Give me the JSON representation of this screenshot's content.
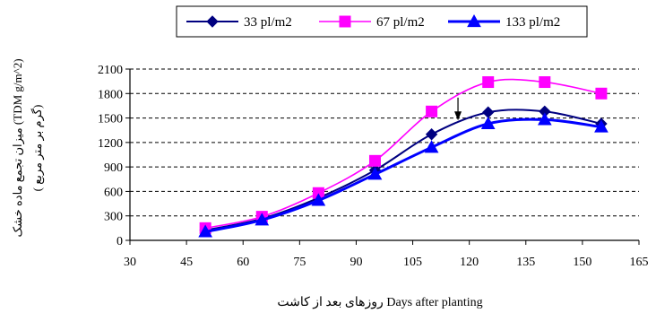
{
  "chart_data": {
    "type": "line",
    "title": "",
    "xlabel": "روزهای بعد از کاشت Days after planting",
    "ylabel_line1": "میزان تجمع ماده خشک (TDM g/m^2)",
    "ylabel_line2": "( گرم بر متر مربع)",
    "xlim": [
      30,
      165
    ],
    "ylim": [
      0,
      2100
    ],
    "xticks": [
      30,
      45,
      60,
      75,
      90,
      105,
      120,
      135,
      150,
      165
    ],
    "yticks": [
      0,
      300,
      600,
      900,
      1200,
      1500,
      1800,
      2100
    ],
    "grid": "horizontal-dashed",
    "legend_position": "top-center",
    "annotation": {
      "type": "arrow",
      "x": 117,
      "from_y": 1750,
      "to_y": 1470
    },
    "series": [
      {
        "name": "33 pl/m2",
        "color": "#000080",
        "marker": "diamond",
        "x": [
          50,
          65,
          80,
          95,
          110,
          125,
          140,
          155
        ],
        "y": [
          125,
          265,
          520,
          860,
          1300,
          1570,
          1580,
          1430
        ]
      },
      {
        "name": "67 pl/m2",
        "color": "#ff00ff",
        "marker": "square",
        "x": [
          50,
          65,
          80,
          95,
          110,
          125,
          140,
          155
        ],
        "y": [
          150,
          290,
          580,
          975,
          1580,
          1940,
          1940,
          1800
        ]
      },
      {
        "name": "133 pl/m2",
        "color": "#0000ff",
        "marker": "triangle",
        "x": [
          50,
          65,
          80,
          95,
          110,
          125,
          140,
          155
        ],
        "y": [
          105,
          250,
          490,
          810,
          1140,
          1430,
          1480,
          1390
        ]
      }
    ]
  }
}
